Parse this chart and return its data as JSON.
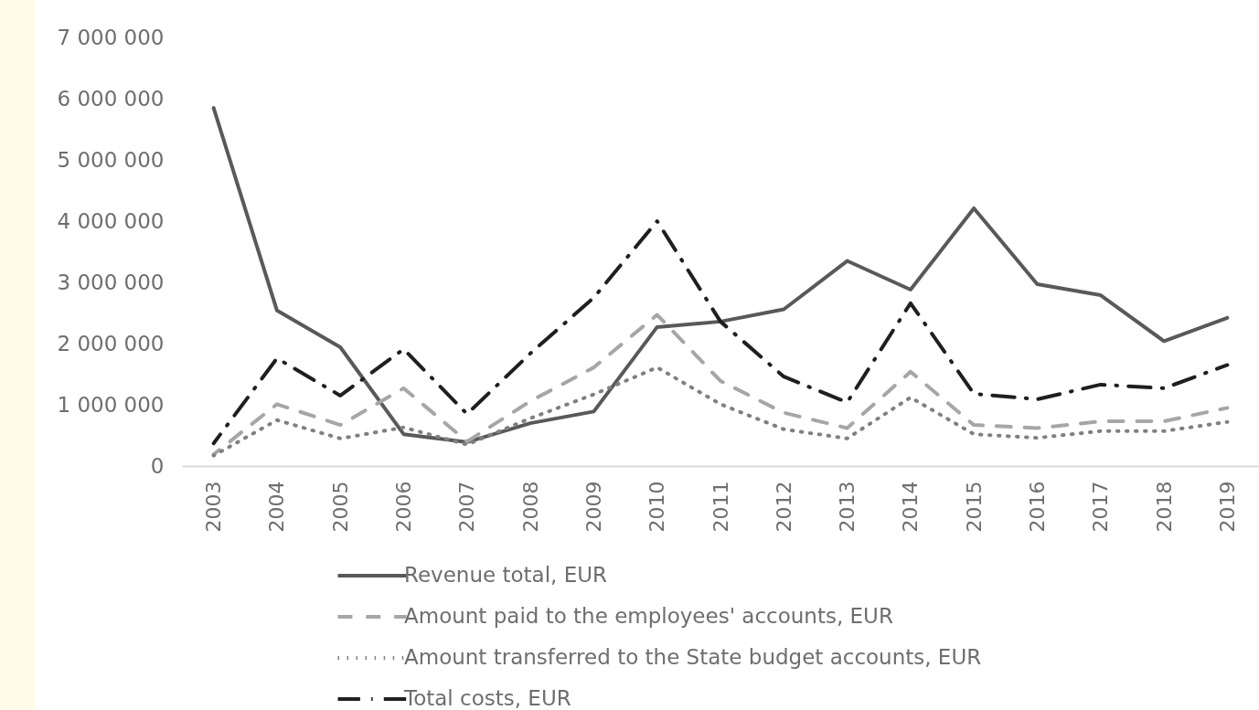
{
  "chart_data": {
    "type": "line",
    "categories": [
      "2003",
      "2004",
      "2005",
      "2006",
      "2007",
      "2008",
      "2009",
      "2010",
      "2011",
      "2012",
      "2013",
      "2014",
      "2015",
      "2016",
      "2017",
      "2018",
      "2019"
    ],
    "ylim": [
      0,
      7000000
    ],
    "yticks": [
      0,
      {
        "value": 1000000,
        "label": "1 000 000"
      },
      {
        "value": 2000000,
        "label": "2 000 000"
      },
      {
        "value": 3000000,
        "label": "3 000 000"
      },
      {
        "value": 4000000,
        "label": "4 000 000"
      },
      {
        "value": 5000000,
        "label": "5 000 000"
      },
      {
        "value": 6000000,
        "label": "6 000 000"
      },
      {
        "value": 7000000,
        "label": "7 000 000"
      }
    ],
    "legend": "bottom",
    "series": [
      {
        "name": "Revenue total, EUR",
        "color": "#595959",
        "line_style": "solid",
        "values": [
          5850000,
          2540000,
          1940000,
          520000,
          390000,
          700000,
          890000,
          2270000,
          2360000,
          2560000,
          3350000,
          2880000,
          4210000,
          2970000,
          2790000,
          2040000,
          2420000
        ]
      },
      {
        "name": "Amount paid to the employees' accounts, EUR",
        "color": "#a6a6a6",
        "line_style": "dashed",
        "values": [
          190000,
          1010000,
          670000,
          1270000,
          400000,
          1060000,
          1610000,
          2470000,
          1390000,
          870000,
          620000,
          1540000,
          670000,
          620000,
          730000,
          730000,
          950000
        ]
      },
      {
        "name": "Amount transferred to the State budget accounts, EUR",
        "color": "#808080",
        "line_style": "dotted",
        "values": [
          170000,
          750000,
          450000,
          630000,
          350000,
          780000,
          1170000,
          1610000,
          1010000,
          600000,
          450000,
          1120000,
          520000,
          460000,
          570000,
          570000,
          720000
        ]
      },
      {
        "name": "Total costs, EUR",
        "color": "#1f1f1f",
        "line_style": "dashdot",
        "values": [
          370000,
          1760000,
          1150000,
          1910000,
          850000,
          1840000,
          2750000,
          4000000,
          2360000,
          1460000,
          1040000,
          2660000,
          1180000,
          1090000,
          1330000,
          1270000,
          1650000
        ]
      }
    ]
  }
}
